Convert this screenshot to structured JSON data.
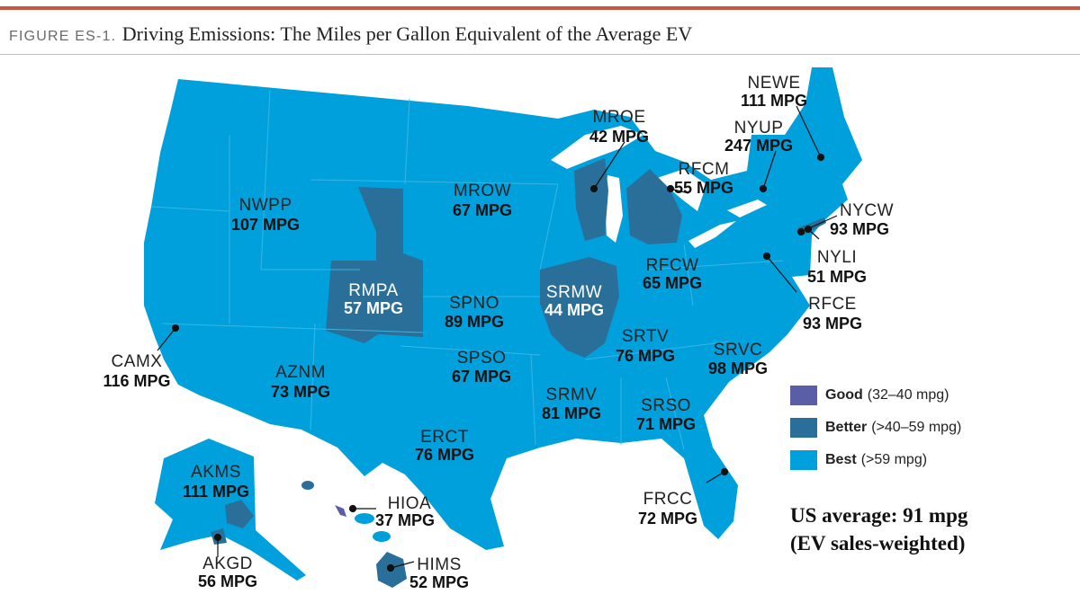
{
  "figure": {
    "number": "FIGURE ES-1.",
    "title": "Driving Emissions: The Miles per Gallon Equivalent of the Average EV"
  },
  "colors": {
    "accent_bar": "#c8553d",
    "good": "#5a5ea6",
    "better": "#2a6f99",
    "best": "#00a0dc",
    "state_lines": "#3fb9e6"
  },
  "legend": [
    {
      "name": "Good",
      "range": "(32–40 mpg)",
      "color": "#5a5ea6"
    },
    {
      "name": "Better",
      "range": "(>40–59 mpg)",
      "color": "#2a6f99"
    },
    {
      "name": "Best",
      "range": "(>59 mpg)",
      "color": "#00a0dc"
    }
  ],
  "summary": {
    "line1": "US average: 91 mpg",
    "line2": "(EV sales-weighted)"
  },
  "regions": {
    "NEWE": {
      "label": "NEWE",
      "value": "111 MPG",
      "category": "best"
    },
    "NYUP": {
      "label": "NYUP",
      "value": "247 MPG",
      "category": "best"
    },
    "MROE": {
      "label": "MROE",
      "value": "42 MPG",
      "category": "better"
    },
    "RFCM": {
      "label": "RFCM",
      "value": "55 MPG",
      "category": "better"
    },
    "NYCW": {
      "label": "NYCW",
      "value": "93 MPG",
      "category": "best"
    },
    "NYLI": {
      "label": "NYLI",
      "value": "51 MPG",
      "category": "better"
    },
    "NWPP": {
      "label": "NWPP",
      "value": "107 MPG",
      "category": "best"
    },
    "MROW": {
      "label": "MROW",
      "value": "67 MPG",
      "category": "best"
    },
    "RMPA": {
      "label": "RMPA",
      "value": "57 MPG",
      "category": "better"
    },
    "SPNO": {
      "label": "SPNO",
      "value": "89 MPG",
      "category": "best"
    },
    "SRMW": {
      "label": "SRMW",
      "value": "44 MPG",
      "category": "better"
    },
    "RFCW": {
      "label": "RFCW",
      "value": "65 MPG",
      "category": "best"
    },
    "RFCE": {
      "label": "RFCE",
      "value": "93 MPG",
      "category": "best"
    },
    "CAMX": {
      "label": "CAMX",
      "value": "116 MPG",
      "category": "best"
    },
    "AZNM": {
      "label": "AZNM",
      "value": "73 MPG",
      "category": "best"
    },
    "SPSO": {
      "label": "SPSO",
      "value": "67 MPG",
      "category": "best"
    },
    "SRTV": {
      "label": "SRTV",
      "value": "76 MPG",
      "category": "best"
    },
    "SRVC": {
      "label": "SRVC",
      "value": "98 MPG",
      "category": "best"
    },
    "SRMV": {
      "label": "SRMV",
      "value": "81 MPG",
      "category": "best"
    },
    "SRSO": {
      "label": "SRSO",
      "value": "71 MPG",
      "category": "best"
    },
    "ERCT": {
      "label": "ERCT",
      "value": "76 MPG",
      "category": "best"
    },
    "FRCC": {
      "label": "FRCC",
      "value": "72 MPG",
      "category": "best"
    },
    "AKMS": {
      "label": "AKMS",
      "value": "111 MPG",
      "category": "best"
    },
    "AKGD": {
      "label": "AKGD",
      "value": "56 MPG",
      "category": "better"
    },
    "HIOA": {
      "label": "HIOA",
      "value": "37 MPG",
      "category": "good"
    },
    "HIMS": {
      "label": "HIMS",
      "value": "52 MPG",
      "category": "better"
    }
  }
}
